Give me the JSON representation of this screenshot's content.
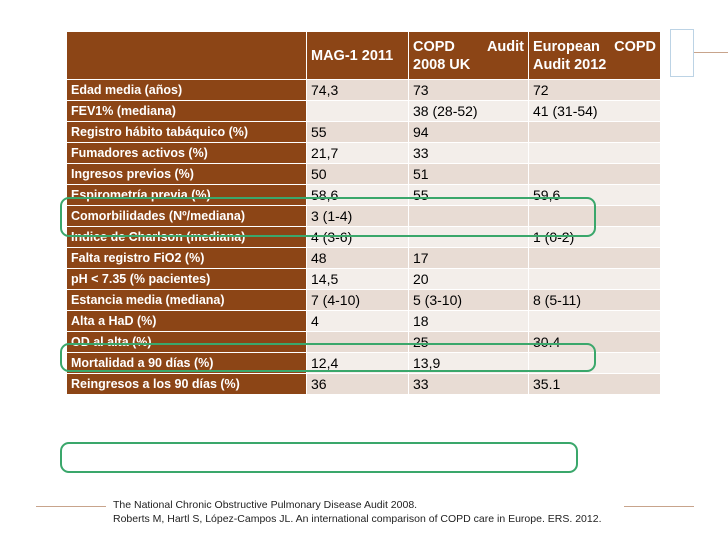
{
  "table": {
    "headers": [
      "",
      "MAG-1 2011",
      "COPD Audit 2008 UK",
      "European COPD Audit 2012"
    ],
    "rows": [
      {
        "label": "Edad media (años)",
        "mag": "74,3",
        "uk": "73",
        "eu": "72"
      },
      {
        "label": "FEV1% (mediana)",
        "mag": "",
        "uk": "38 (28-52)",
        "eu": "41 (31-54)"
      },
      {
        "label": "Registro hábito tabáquico (%)",
        "mag": "55",
        "uk": "94",
        "eu": ""
      },
      {
        "label": "Fumadores activos (%)",
        "mag": "21,7",
        "uk": "33",
        "eu": ""
      },
      {
        "label": "Ingresos previos (%)",
        "mag": "50",
        "uk": "51",
        "eu": ""
      },
      {
        "label": "Espirometría previa (%)",
        "mag": "58,6",
        "uk": "55",
        "eu": "59,6"
      },
      {
        "label": "Comorbilidades (Nº/mediana)",
        "mag": "3 (1-4)",
        "uk": "",
        "eu": ""
      },
      {
        "label": "Indice de Charlson (mediana)",
        "mag": "4 (3-6)",
        "uk": "",
        "eu": "1 (0-2)"
      },
      {
        "label": "Falta registro FiO2 (%)",
        "mag": "48",
        "uk": "17",
        "eu": ""
      },
      {
        "label": "pH < 7.35 (% pacientes)",
        "mag": "14,5",
        "uk": "20",
        "eu": ""
      },
      {
        "label": "Estancia media (mediana)",
        "mag": "7 (4-10)",
        "uk": "5 (3-10)",
        "eu": "8 (5-11)"
      },
      {
        "label": "Alta a HaD  (%)",
        "mag": "4",
        "uk": "18",
        "eu": ""
      },
      {
        "label": "OD al alta (%)",
        "mag": "",
        "uk": "25",
        "eu": "30.4"
      },
      {
        "label": "Mortalidad a 90 días (%)",
        "mag": "12,4",
        "uk": "13,9",
        "eu": ""
      },
      {
        "label": "Reingresos a los 90 días (%)",
        "mag": "36",
        "uk": "33",
        "eu": "35.1"
      }
    ]
  },
  "footnote": {
    "line1": "The National Chronic Obstructive Pulmonary Disease Audit 2008.",
    "line2": "Roberts M, Hartl S, López-Campos JL. An international comparison of COPD care in Europe. ERS. 2012."
  },
  "colors": {
    "header_bg": "#8c4516",
    "row_odd": "#e8dcd4",
    "row_even": "#f3eeea",
    "highlight": "#3aa76b"
  }
}
